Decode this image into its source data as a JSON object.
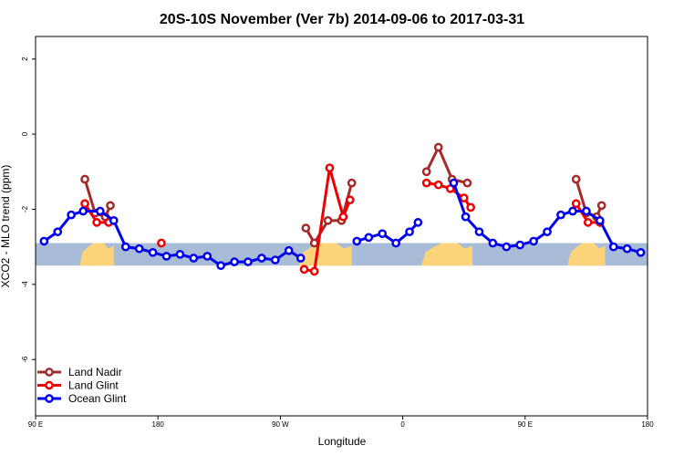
{
  "chart_data": {
    "type": "line",
    "title": "20S-10S November (Ver 7b)   2014-09-06 to 2017-03-31",
    "xlabel": "Longitude",
    "ylabel": "XCO2 - MLO trend (ppm)",
    "xlim": [
      0,
      360
    ],
    "ylim": [
      -7.5,
      2.6
    ],
    "xticks": [
      {
        "value": 0,
        "label": "90 E"
      },
      {
        "value": 72,
        "label": "180"
      },
      {
        "value": 144,
        "label": "90 W"
      },
      {
        "value": 216,
        "label": "0"
      },
      {
        "value": 288,
        "label": "90 E"
      },
      {
        "value": 360,
        "label": "180"
      }
    ],
    "yticks": [
      {
        "value": 2,
        "label": "2"
      },
      {
        "value": 0,
        "label": "0"
      },
      {
        "value": -2,
        "label": "-2"
      },
      {
        "value": -4,
        "label": "-4"
      },
      {
        "value": -6,
        "label": "-6"
      }
    ],
    "band": {
      "y_range": [
        -3.5,
        -2.9
      ],
      "ocean_color": "#a8bcd8",
      "land_color": "#fdd47a"
    },
    "land_segments": [
      [
        26,
        46
      ],
      [
        155,
        186
      ],
      [
        227,
        257
      ],
      [
        313,
        335
      ]
    ],
    "legend_position": "bottom-left",
    "series": [
      {
        "name": "Land Nadir",
        "color": "#a52a2a",
        "segments": [
          [
            [
              29,
              -1.2
            ],
            [
              35,
              -2.1
            ],
            [
              41,
              -2.2
            ],
            [
              44,
              -1.9
            ]
          ],
          [
            [
              159,
              -2.5
            ],
            [
              164,
              -2.9
            ],
            [
              172,
              -2.3
            ],
            [
              180,
              -2.3
            ],
            [
              186,
              -1.3
            ]
          ],
          [
            [
              230,
              -1.0
            ],
            [
              237,
              -0.35
            ],
            [
              245,
              -1.2
            ],
            [
              254,
              -1.3
            ]
          ],
          [
            [
              318,
              -1.2
            ],
            [
              324,
              -2.1
            ],
            [
              330,
              -2.2
            ],
            [
              333,
              -1.9
            ]
          ]
        ]
      },
      {
        "name": "Land Glint",
        "color": "#ee0000",
        "segments": [
          [
            [
              29,
              -1.85
            ],
            [
              36,
              -2.35
            ],
            [
              43,
              -2.35
            ]
          ],
          [
            [
              74,
              -2.9
            ]
          ],
          [
            [
              158,
              -3.6
            ],
            [
              164,
              -3.65
            ],
            [
              173,
              -0.9
            ],
            [
              181,
              -2.2
            ],
            [
              185,
              -1.75
            ]
          ],
          [
            [
              230,
              -1.3
            ],
            [
              237,
              -1.35
            ],
            [
              244,
              -1.45
            ],
            [
              252,
              -1.7
            ],
            [
              256,
              -1.95
            ]
          ],
          [
            [
              318,
              -1.85
            ],
            [
              325,
              -2.35
            ],
            [
              332,
              -2.35
            ]
          ]
        ]
      },
      {
        "name": "Ocean Glint",
        "color": "#0000ee",
        "segments": [
          [
            [
              5,
              -2.85
            ],
            [
              13,
              -2.6
            ],
            [
              21,
              -2.15
            ],
            [
              28,
              -2.05
            ],
            [
              38,
              -2.05
            ],
            [
              46,
              -2.3
            ],
            [
              53,
              -3.0
            ],
            [
              61,
              -3.05
            ],
            [
              69,
              -3.15
            ],
            [
              77,
              -3.25
            ],
            [
              85,
              -3.2
            ],
            [
              93,
              -3.3
            ],
            [
              101,
              -3.25
            ],
            [
              109,
              -3.5
            ],
            [
              117,
              -3.4
            ],
            [
              125,
              -3.4
            ],
            [
              133,
              -3.3
            ],
            [
              141,
              -3.35
            ],
            [
              149,
              -3.1
            ],
            [
              156,
              -3.3
            ]
          ],
          [
            [
              189,
              -2.85
            ],
            [
              196,
              -2.75
            ],
            [
              204,
              -2.65
            ],
            [
              212,
              -2.9
            ],
            [
              220,
              -2.6
            ],
            [
              225,
              -2.35
            ]
          ],
          [
            [
              246,
              -1.3
            ],
            [
              253,
              -2.2
            ],
            [
              261,
              -2.6
            ],
            [
              269,
              -2.9
            ],
            [
              277,
              -3.0
            ],
            [
              285,
              -2.95
            ],
            [
              293,
              -2.85
            ],
            [
              301,
              -2.6
            ],
            [
              309,
              -2.15
            ],
            [
              316,
              -2.05
            ],
            [
              324,
              -2.05
            ],
            [
              332,
              -2.3
            ],
            [
              340,
              -3.0
            ],
            [
              348,
              -3.05
            ],
            [
              356,
              -3.15
            ]
          ]
        ]
      }
    ]
  }
}
